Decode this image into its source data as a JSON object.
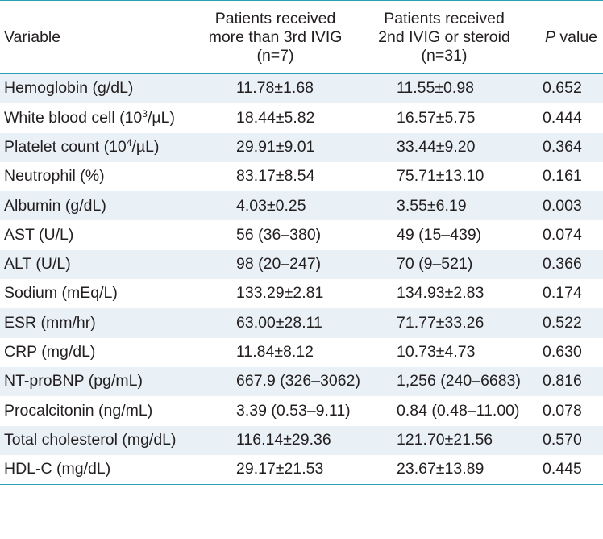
{
  "header": {
    "variable": "Variable",
    "group1": [
      "Patients received",
      "more than 3rd IVIG",
      "(n=7)"
    ],
    "group2": [
      "Patients received",
      "2nd IVIG or steroid",
      "(n=31)"
    ],
    "pvalue_italic": "P",
    "pvalue_rest": " value"
  },
  "rows": [
    {
      "label_pre": "Hemoglobin (g/dL)",
      "label_sup": "",
      "label_post": "",
      "g1": "11.78±1.68",
      "g2": "11.55±0.98",
      "p": "0.652"
    },
    {
      "label_pre": "White blood cell (10",
      "label_sup": "3",
      "label_post": "/µL)",
      "g1": "18.44±5.82",
      "g2": "16.57±5.75",
      "p": "0.444"
    },
    {
      "label_pre": "Platelet count (10",
      "label_sup": "4",
      "label_post": "/µL)",
      "g1": "29.91±9.01",
      "g2": "33.44±9.20",
      "p": "0.364"
    },
    {
      "label_pre": "Neutrophil (%)",
      "label_sup": "",
      "label_post": "",
      "g1": "83.17±8.54",
      "g2": "75.71±13.10",
      "p": "0.161"
    },
    {
      "label_pre": "Albumin (g/dL)",
      "label_sup": "",
      "label_post": "",
      "g1": "4.03±0.25",
      "g2": "3.55±6.19",
      "p": "0.003"
    },
    {
      "label_pre": "AST (U/L)",
      "label_sup": "",
      "label_post": "",
      "g1": "56 (36–380)",
      "g2": "49 (15–439)",
      "p": "0.074"
    },
    {
      "label_pre": "ALT (U/L)",
      "label_sup": "",
      "label_post": "",
      "g1": "98 (20–247)",
      "g2": "70 (9–521)",
      "p": "0.366"
    },
    {
      "label_pre": "Sodium (mEq/L)",
      "label_sup": "",
      "label_post": "",
      "g1": "133.29±2.81",
      "g2": "134.93±2.83",
      "p": "0.174"
    },
    {
      "label_pre": "ESR (mm/hr)",
      "label_sup": "",
      "label_post": "",
      "g1": "63.00±28.11",
      "g2": "71.77±33.26",
      "p": "0.522"
    },
    {
      "label_pre": "CRP (mg/dL)",
      "label_sup": "",
      "label_post": "",
      "g1": "11.84±8.12",
      "g2": "10.73±4.73",
      "p": "0.630"
    },
    {
      "label_pre": "NT-proBNP (pg/mL)",
      "label_sup": "",
      "label_post": "",
      "g1": "667.9 (326–3062)",
      "g2": "1,256 (240–6683)",
      "p": "0.816"
    },
    {
      "label_pre": "Procalcitonin (ng/mL)",
      "label_sup": "",
      "label_post": "",
      "g1": "3.39 (0.53–9.11)",
      "g2": "0.84 (0.48–11.00)",
      "p": "0.078"
    },
    {
      "label_pre": "Total cholesterol (mg/dL)",
      "label_sup": "",
      "label_post": "",
      "g1": "116.14±29.36",
      "g2": "121.70±21.56",
      "p": "0.570"
    },
    {
      "label_pre": "HDL-C (mg/dL)",
      "label_sup": "",
      "label_post": "",
      "g1": "29.17±21.53",
      "g2": "23.67±13.89",
      "p": "0.445"
    }
  ],
  "colors": {
    "rule": "#2aa0b4",
    "stripe": "#e9f1f6",
    "text": "#231f20"
  }
}
